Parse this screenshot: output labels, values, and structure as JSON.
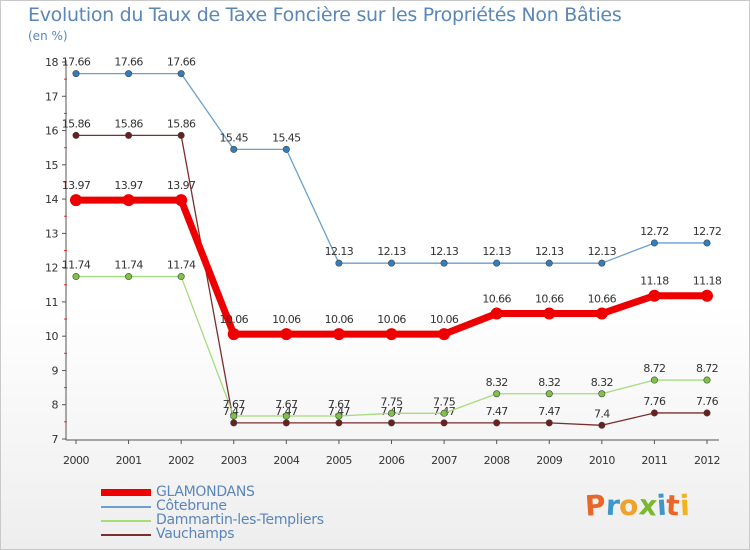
{
  "header": {
    "title": "Evolution du Taux de Taxe Foncière sur les Propriétés Non Bâties",
    "unit": "(en %)"
  },
  "brand": {
    "letters": [
      "P",
      "r",
      "o",
      "x",
      "i",
      "t",
      "i"
    ],
    "colors": [
      "#e8662a",
      "#3f97c9",
      "#f0a22a",
      "#7ab831",
      "#3f97c9",
      "#e8662a",
      "#f0b21f"
    ]
  },
  "chart_data": {
    "type": "line",
    "title": "Evolution du Taux de Taxe Foncière sur les Propriétés Non Bâties",
    "ylabel": "(en %)",
    "xlabel": "",
    "x": [
      "2000",
      "2001",
      "2002",
      "2003",
      "2004",
      "2005",
      "2006",
      "2007",
      "2008",
      "2009",
      "2010",
      "2011",
      "2012"
    ],
    "ylim": [
      7,
      18
    ],
    "yticks": [
      7,
      8,
      9,
      10,
      11,
      12,
      13,
      14,
      15,
      16,
      17,
      18
    ],
    "series": [
      {
        "name": "Côtebrune",
        "color": "#6a9fcf",
        "marker": "#2f7fc0",
        "width": 1.3,
        "label_pos": "above",
        "values": [
          17.66,
          17.66,
          17.66,
          15.45,
          15.45,
          12.13,
          12.13,
          12.13,
          12.13,
          12.13,
          12.13,
          12.72,
          12.72
        ],
        "labels": [
          "17.66",
          "17.66",
          "17.66",
          "15.45",
          "15.45",
          "12.13",
          "12.13",
          "12.13",
          "12.13",
          "12.13",
          "12.13",
          "12.72",
          "12.72"
        ]
      },
      {
        "name": "Vauchamps",
        "color": "#7b2e2e",
        "marker": "#6b1f1f",
        "width": 1.3,
        "label_pos": "above",
        "values": [
          15.86,
          15.86,
          15.86,
          7.47,
          7.47,
          7.47,
          7.47,
          7.47,
          7.47,
          7.47,
          7.4,
          7.76,
          7.76
        ],
        "labels": [
          "15.86",
          "15.86",
          "15.86",
          "7.47",
          "7.47",
          "7.47",
          "7.47",
          "7.47",
          "7.47",
          "7.47",
          "7.4",
          "7.76",
          "7.76"
        ]
      },
      {
        "name": "Dammartin-les-Templiers",
        "color": "#a6dc7c",
        "marker": "#7cc443",
        "width": 1.3,
        "label_pos": "above",
        "values": [
          11.74,
          11.74,
          11.74,
          7.67,
          7.67,
          7.67,
          7.75,
          7.75,
          8.32,
          8.32,
          8.32,
          8.72,
          8.72
        ],
        "labels": [
          "11.74",
          "11.74",
          "11.74",
          "7.67",
          "7.67",
          "7.67",
          "7.75",
          "7.75",
          "8.32",
          "8.32",
          "8.32",
          "8.72",
          "8.72"
        ]
      },
      {
        "name": "GLAMONDANS",
        "color": "#ee0000",
        "marker": "#ee0000",
        "width": 7,
        "label_pos": "above",
        "values": [
          13.97,
          13.97,
          13.97,
          10.06,
          10.06,
          10.06,
          10.06,
          10.06,
          10.66,
          10.66,
          10.66,
          11.18,
          11.18
        ],
        "labels": [
          "13.97",
          "13.97",
          "13.97",
          "10.06",
          "10.06",
          "10.06",
          "10.06",
          "10.06",
          "10.66",
          "10.66",
          "10.66",
          "11.18",
          "11.18"
        ]
      }
    ],
    "legend": [
      {
        "name": "GLAMONDANS",
        "color": "#ee0000",
        "thick": true
      },
      {
        "name": "Côtebrune",
        "color": "#6a9fcf",
        "thick": false
      },
      {
        "name": "Dammartin-les-Templiers",
        "color": "#a6dc7c",
        "thick": false
      },
      {
        "name": "Vauchamps",
        "color": "#7b2e2e",
        "thick": false
      }
    ],
    "legend_position": "bottom-left"
  }
}
